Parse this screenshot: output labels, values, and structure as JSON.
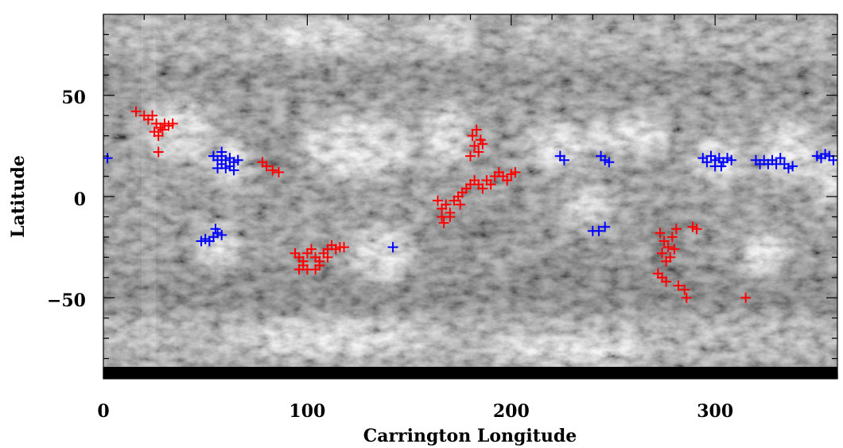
{
  "chart_data": {
    "type": "scatter",
    "title": "",
    "xlabel": "Carrington Longitude",
    "ylabel": "Latitude",
    "xlim": [
      0,
      360
    ],
    "ylim": [
      -90,
      90
    ],
    "x_ticks": [
      0,
      100,
      200,
      300
    ],
    "y_ticks": [
      -50,
      0,
      50
    ],
    "x_tick_labels": [
      "0",
      "100",
      "200",
      "300"
    ],
    "y_tick_labels": [
      "−50",
      "0",
      "50"
    ],
    "background": "grayscale synoptic solar image",
    "grid": false,
    "legend": "none",
    "series": [
      {
        "color": "#ff0000",
        "marker": "+",
        "points": [
          [
            16,
            42
          ],
          [
            20,
            40
          ],
          [
            22,
            38
          ],
          [
            24,
            40
          ],
          [
            26,
            36
          ],
          [
            28,
            34
          ],
          [
            30,
            36
          ],
          [
            32,
            35
          ],
          [
            25,
            32
          ],
          [
            27,
            30
          ],
          [
            29,
            33
          ],
          [
            34,
            36
          ],
          [
            27,
            22
          ],
          [
            78,
            17
          ],
          [
            80,
            15
          ],
          [
            83,
            13
          ],
          [
            86,
            12
          ],
          [
            181,
            30
          ],
          [
            183,
            33
          ],
          [
            185,
            28
          ],
          [
            182,
            25
          ],
          [
            184,
            22
          ],
          [
            186,
            26
          ],
          [
            180,
            20
          ],
          [
            164,
            -2
          ],
          [
            166,
            -6
          ],
          [
            168,
            -4
          ],
          [
            170,
            -8
          ],
          [
            172,
            -2
          ],
          [
            174,
            0
          ],
          [
            176,
            2
          ],
          [
            178,
            4
          ],
          [
            180,
            6
          ],
          [
            182,
            8
          ],
          [
            184,
            6
          ],
          [
            186,
            4
          ],
          [
            188,
            8
          ],
          [
            190,
            6
          ],
          [
            166,
            -10
          ],
          [
            167,
            -13
          ],
          [
            170,
            -10
          ],
          [
            175,
            -4
          ],
          [
            192,
            10
          ],
          [
            194,
            12
          ],
          [
            196,
            10
          ],
          [
            198,
            8
          ],
          [
            200,
            11
          ],
          [
            202,
            12
          ],
          [
            94,
            -28
          ],
          [
            96,
            -30
          ],
          [
            98,
            -32
          ],
          [
            100,
            -28
          ],
          [
            102,
            -26
          ],
          [
            104,
            -30
          ],
          [
            106,
            -32
          ],
          [
            108,
            -28
          ],
          [
            110,
            -26
          ],
          [
            112,
            -24
          ],
          [
            114,
            -26
          ],
          [
            116,
            -25
          ],
          [
            118,
            -25
          ],
          [
            96,
            -36
          ],
          [
            100,
            -36
          ],
          [
            104,
            -36
          ],
          [
            98,
            -34
          ],
          [
            106,
            -34
          ],
          [
            110,
            -30
          ],
          [
            273,
            -18
          ],
          [
            275,
            -22
          ],
          [
            277,
            -25
          ],
          [
            279,
            -20
          ],
          [
            281,
            -16
          ],
          [
            274,
            -28
          ],
          [
            276,
            -32
          ],
          [
            278,
            -30
          ],
          [
            280,
            -26
          ],
          [
            272,
            -38
          ],
          [
            274,
            -40
          ],
          [
            276,
            -42
          ],
          [
            282,
            -44
          ],
          [
            285,
            -46
          ],
          [
            286,
            -50
          ],
          [
            289,
            -15
          ],
          [
            291,
            -16
          ],
          [
            315,
            -50
          ]
        ]
      },
      {
        "color": "#0000ff",
        "marker": "+",
        "points": [
          [
            2,
            19
          ],
          [
            54,
            20
          ],
          [
            56,
            18
          ],
          [
            58,
            20
          ],
          [
            60,
            18
          ],
          [
            62,
            19
          ],
          [
            64,
            17
          ],
          [
            66,
            18
          ],
          [
            56,
            14
          ],
          [
            58,
            16
          ],
          [
            60,
            14
          ],
          [
            62,
            15
          ],
          [
            64,
            13
          ],
          [
            58,
            22
          ],
          [
            48,
            -22
          ],
          [
            50,
            -21
          ],
          [
            52,
            -22
          ],
          [
            54,
            -20
          ],
          [
            56,
            -18
          ],
          [
            58,
            -19
          ],
          [
            55,
            -16
          ],
          [
            142,
            -25
          ],
          [
            224,
            20
          ],
          [
            226,
            18
          ],
          [
            244,
            20
          ],
          [
            246,
            18
          ],
          [
            248,
            17
          ],
          [
            240,
            -17
          ],
          [
            243,
            -17
          ],
          [
            246,
            -15
          ],
          [
            294,
            19
          ],
          [
            296,
            17
          ],
          [
            298,
            20
          ],
          [
            300,
            18
          ],
          [
            302,
            19
          ],
          [
            304,
            17
          ],
          [
            306,
            19
          ],
          [
            308,
            18
          ],
          [
            300,
            15
          ],
          [
            303,
            15
          ],
          [
            320,
            18
          ],
          [
            322,
            16
          ],
          [
            324,
            18
          ],
          [
            326,
            16
          ],
          [
            328,
            18
          ],
          [
            330,
            16
          ],
          [
            332,
            19
          ],
          [
            334,
            16
          ],
          [
            336,
            14
          ],
          [
            338,
            15
          ],
          [
            350,
            20
          ],
          [
            352,
            19
          ],
          [
            354,
            21
          ],
          [
            356,
            20
          ],
          [
            358,
            18
          ]
        ]
      }
    ]
  }
}
